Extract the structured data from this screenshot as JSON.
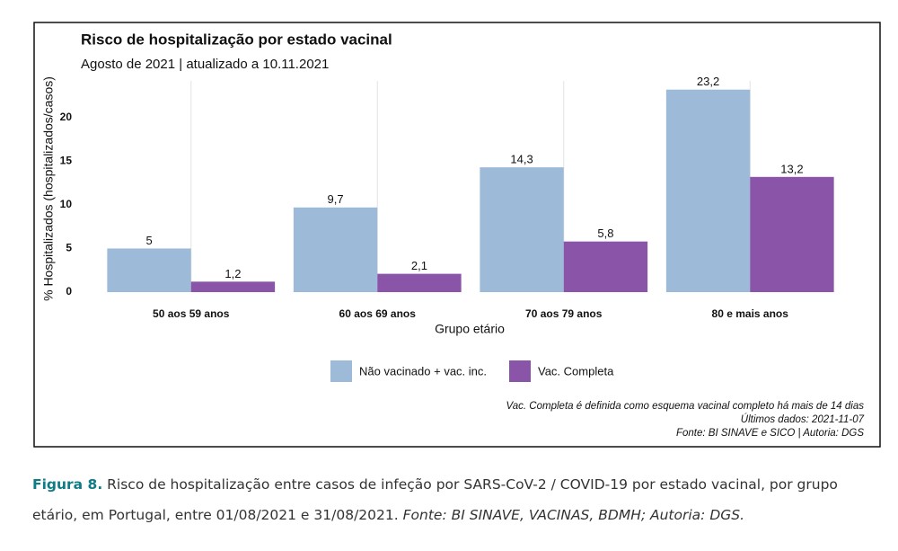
{
  "chart_data": {
    "type": "grouped-bar",
    "title": "Risco de hospitalização por estado vacinal",
    "subtitle": "Agosto de 2021 | atualizado a 10.11.2021",
    "xlabel": "Grupo etário",
    "ylabel": "% Hospitalizados (hospitalizados/casos)",
    "categories": [
      "50 aos 59 anos",
      "60 aos 69 anos",
      "70 aos 79 anos",
      "80 e mais anos"
    ],
    "series": [
      {
        "name": "Não vacinado + vac. inc.",
        "color": "#9dbbd9",
        "values": [
          5,
          9.7,
          14.3,
          23.2
        ],
        "value_labels": [
          "5",
          "9,7",
          "14,3",
          "23,2"
        ]
      },
      {
        "name": "Vac. Completa",
        "color": "#8a55a8",
        "values": [
          1.2,
          2.1,
          5.8,
          13.2
        ],
        "value_labels": [
          "1,2",
          "2,1",
          "5,8",
          "13,2"
        ]
      }
    ],
    "ylim": [
      0,
      24.2
    ],
    "yticks": [
      0,
      5,
      10,
      15,
      20
    ],
    "notes": [
      "Vac. Completa é definida como esquema vacinal completo há mais de 14 dias",
      "Últimos dados: 2021-11-07",
      "Fonte: BI SINAVE e SICO | Autoria: DGS"
    ]
  },
  "caption": {
    "label": "Figura 8.",
    "text": "Risco de hospitalização entre casos de infeção por SARS-CoV-2 / COVID-19 por estado vacinal, por grupo etário, em Portugal, entre 01/08/2021 e 31/08/2021.",
    "source": "Fonte: BI SINAVE, VACINAS, BDMH; Autoria: DGS."
  }
}
